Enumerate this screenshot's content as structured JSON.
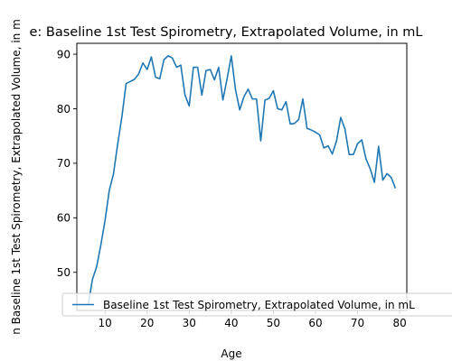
{
  "chart_data": {
    "type": "line",
    "title": "e: Baseline 1st Test Spirometry, Extrapolated Volume, in mL",
    "xlabel": "Age",
    "ylabel": "n Baseline 1st Test Spirometry, Extrapolated Volume, in m",
    "xlim": [
      3.3,
      81.7
    ],
    "ylim": [
      43.0,
      92.0
    ],
    "xticks": [
      10,
      20,
      30,
      40,
      50,
      60,
      70,
      80
    ],
    "yticks": [
      50,
      60,
      70,
      80,
      90
    ],
    "grid": false,
    "legend_position": "lower-right",
    "series": [
      {
        "name": "Baseline 1st Test Spirometry, Extrapolated Volume, in mL",
        "color": "#1f77b4",
        "x": [
          6,
          7,
          8,
          9,
          10,
          11,
          12,
          13,
          14,
          15,
          16,
          17,
          18,
          19,
          20,
          21,
          22,
          23,
          24,
          25,
          26,
          27,
          28,
          29,
          30,
          31,
          32,
          33,
          34,
          35,
          36,
          37,
          38,
          39,
          40,
          41,
          42,
          43,
          44,
          45,
          46,
          47,
          48,
          49,
          50,
          51,
          52,
          53,
          54,
          55,
          56,
          57,
          58,
          59,
          60,
          61,
          62,
          63,
          64,
          65,
          66,
          67,
          68,
          69,
          70,
          71,
          72,
          73,
          74,
          75,
          76,
          77,
          78,
          79
        ],
        "values": [
          44.0,
          48.7,
          51.0,
          55.0,
          59.5,
          65.0,
          68.0,
          73.5,
          78.5,
          84.6,
          85.0,
          85.4,
          86.4,
          88.4,
          87.2,
          89.5,
          85.8,
          85.5,
          89.0,
          89.7,
          89.3,
          87.6,
          88.0,
          82.5,
          80.5,
          87.6,
          87.6,
          82.5,
          87.0,
          87.2,
          85.3,
          87.6,
          81.6,
          85.5,
          89.7,
          83.5,
          79.8,
          82.2,
          83.6,
          81.8,
          81.8,
          74.1,
          81.6,
          81.9,
          83.3,
          80.0,
          79.8,
          81.3,
          77.2,
          77.3,
          78.0,
          81.8,
          76.4,
          76.1,
          75.7,
          75.2,
          72.8,
          73.2,
          71.7,
          74.1,
          78.4,
          76.3,
          71.6,
          71.6,
          73.6,
          74.3,
          70.8,
          69.0,
          66.5,
          73.1,
          66.9,
          68.1,
          67.4,
          65.4
        ]
      }
    ]
  }
}
